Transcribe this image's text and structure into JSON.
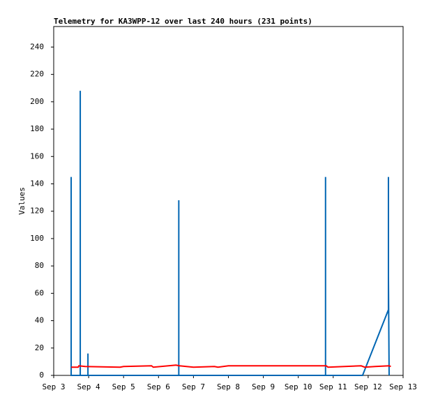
{
  "chart_data": {
    "type": "line",
    "title": "Telemetry for KA3WPP-12 over last 240 hours (231 points)",
    "y_label": "Values",
    "xlim": [
      3,
      13
    ],
    "xticks": [
      {
        "value": 3,
        "label": "Sep 3"
      },
      {
        "value": 4,
        "label": "Sep 4"
      },
      {
        "value": 5,
        "label": "Sep 5"
      },
      {
        "value": 6,
        "label": "Sep 6"
      },
      {
        "value": 7,
        "label": "Sep 7"
      },
      {
        "value": 8,
        "label": "Sep 8"
      },
      {
        "value": 9,
        "label": "Sep 9"
      },
      {
        "value": 10,
        "label": "Sep 10"
      },
      {
        "value": 11,
        "label": "Sep 11"
      },
      {
        "value": 12,
        "label": "Sep 12"
      },
      {
        "value": 13,
        "label": "Sep 13"
      }
    ],
    "ylim": [
      0,
      255
    ],
    "yticks": [
      0,
      20,
      40,
      60,
      80,
      100,
      120,
      140,
      160,
      180,
      200,
      220,
      240
    ],
    "grid": false,
    "series": [
      {
        "color": "#000000",
        "x": [
          3.5,
          11.84
        ],
        "values": [
          0,
          0
        ]
      },
      {
        "color": "#0066b3",
        "x": [
          3.5,
          3.5,
          3.5,
          3.76,
          3.76,
          3.76,
          3.98,
          3.98,
          3.98,
          6.58,
          6.58,
          6.58,
          10.78,
          10.78,
          10.78,
          11.84,
          12.58,
          12.58,
          12.58,
          12.6
        ],
        "values": [
          0,
          145,
          0,
          0,
          208,
          0,
          0,
          16,
          0,
          0,
          128,
          0,
          0,
          145,
          0,
          0,
          48,
          145,
          73,
          0
        ]
      },
      {
        "color": "#ff0000",
        "x": [
          3.5,
          3.7,
          3.72,
          3.9,
          4.9,
          5.0,
          5.8,
          5.85,
          6.5,
          6.6,
          7.0,
          7.6,
          7.7,
          8.0,
          10.8,
          10.85,
          11.8,
          11.9,
          12.2,
          12.6,
          12.65
        ],
        "values": [
          6,
          6,
          7,
          6.5,
          6,
          6.5,
          7,
          6,
          7.5,
          7,
          6,
          6.5,
          6,
          7,
          7,
          6,
          7,
          6,
          6.5,
          7,
          6.5
        ]
      }
    ]
  }
}
